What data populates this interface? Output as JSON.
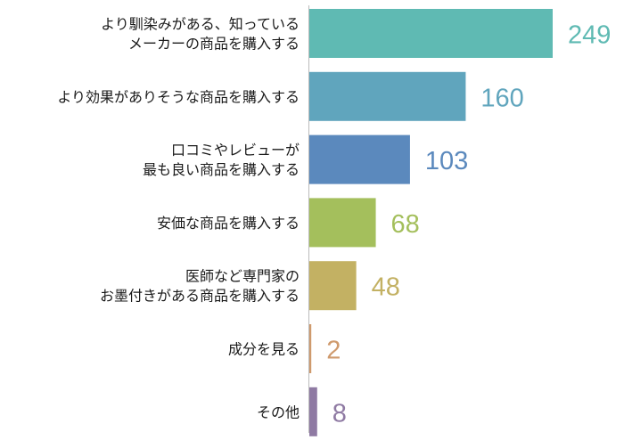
{
  "chart_data": {
    "type": "bar",
    "orientation": "horizontal",
    "title": "",
    "xlabel": "",
    "ylabel": "",
    "xlim": [
      0,
      249
    ],
    "grid": false,
    "legend": "none",
    "categories": [
      [
        "より馴染みがある、知っている",
        "メーカーの商品を購入する"
      ],
      [
        "より効果がありそうな商品を購入する"
      ],
      [
        "口コミやレビューが",
        "最も良い商品を購入する"
      ],
      [
        "安価な商品を購入する"
      ],
      [
        "医師など専門家の",
        "お墨付きがある商品を購入する"
      ],
      [
        "成分を見る"
      ],
      [
        "その他"
      ]
    ],
    "values": [
      249,
      160,
      103,
      68,
      48,
      2,
      8
    ],
    "colors": [
      "#5fbab3",
      "#60a5bd",
      "#5b89bd",
      "#a4bf5c",
      "#c3b163",
      "#cf9a6d",
      "#8f7aa3"
    ]
  }
}
